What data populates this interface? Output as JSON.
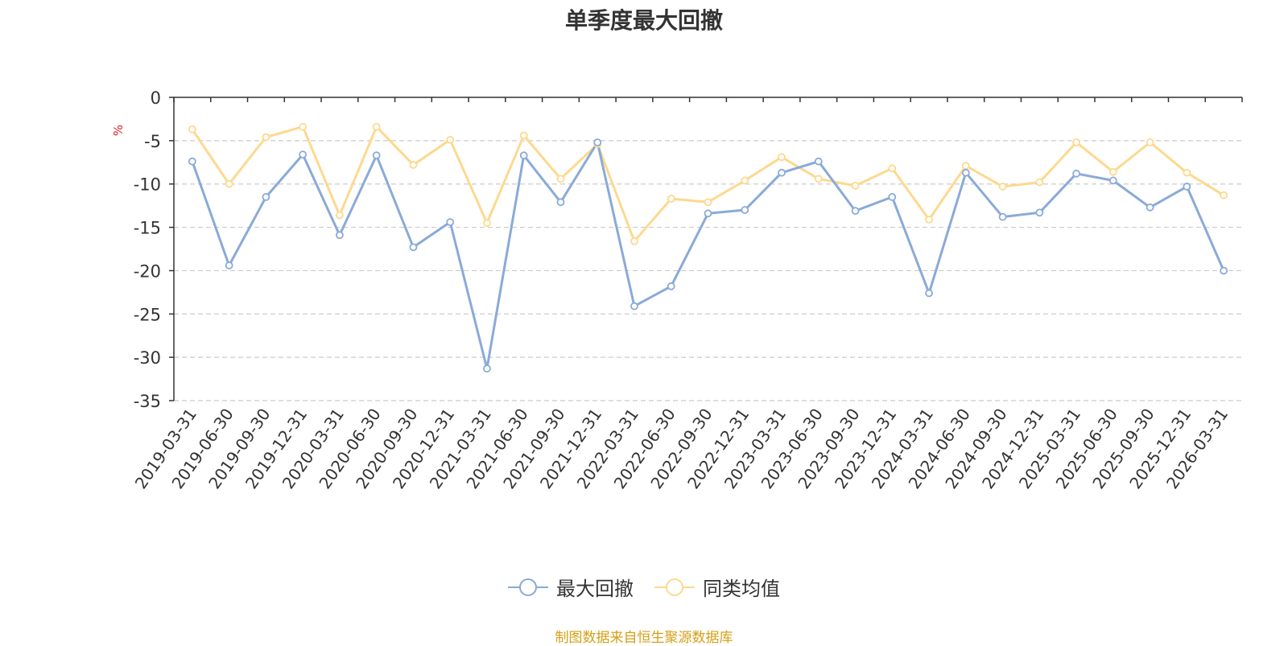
{
  "chart_data": {
    "type": "line",
    "title": "单季度最大回撤",
    "ylabel": "%",
    "xlabel": "",
    "ylim": [
      -35,
      0
    ],
    "yticks": [
      0,
      -5,
      -10,
      -15,
      -20,
      -25,
      -30,
      -35
    ],
    "grid": true,
    "legend_position": "bottom",
    "categories": [
      "2019-03-31",
      "2019-06-30",
      "2019-09-30",
      "2019-12-31",
      "2020-03-31",
      "2020-06-30",
      "2020-09-30",
      "2020-12-31",
      "2021-03-31",
      "2021-06-30",
      "2021-09-30",
      "2021-12-31",
      "2022-03-31",
      "2022-06-30",
      "2022-09-30",
      "2022-12-31",
      "2023-03-31",
      "2023-06-30",
      "2023-09-30",
      "2023-12-31",
      "2024-03-31",
      "2024-06-30",
      "2024-09-30",
      "2024-12-31",
      "2025-03-31",
      "2025-06-30",
      "2025-09-30",
      "2025-12-31",
      "2026-03-31"
    ],
    "series": [
      {
        "name": "最大回撤",
        "color": "#8aaad8",
        "values": [
          -7.4,
          -19.4,
          -11.5,
          -6.6,
          -15.9,
          -6.7,
          -17.3,
          -14.4,
          -31.3,
          -6.7,
          -12.1,
          -5.2,
          -24.1,
          -21.8,
          -13.4,
          -13.0,
          -8.7,
          -7.4,
          -13.1,
          -11.5,
          -22.6,
          -8.7,
          -13.8,
          -13.3,
          -8.8,
          -9.6,
          -12.7,
          -10.3,
          -20.0
        ]
      },
      {
        "name": "同类均值",
        "color": "#fdd98e",
        "values": [
          -3.7,
          -10.0,
          -4.6,
          -3.4,
          -13.6,
          -3.4,
          -7.8,
          -4.9,
          -14.5,
          -4.4,
          -9.4,
          -5.4,
          -16.6,
          -11.7,
          -12.1,
          -9.6,
          -6.9,
          -9.4,
          -10.2,
          -8.2,
          -14.1,
          -7.9,
          -10.3,
          -9.8,
          -5.2,
          -8.6,
          -5.2,
          -8.7,
          -11.3
        ]
      }
    ]
  },
  "source_note": "制图数据来自恒生聚源数据库"
}
